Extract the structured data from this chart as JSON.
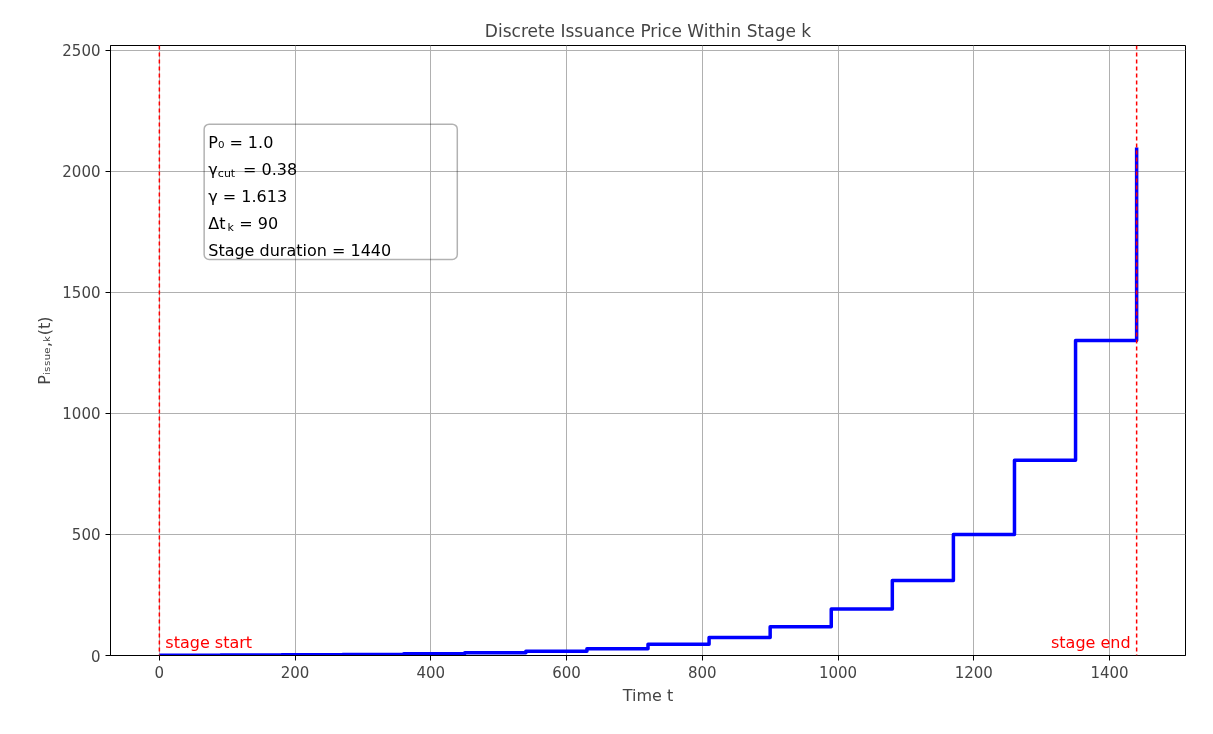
{
  "chart_data": {
    "type": "step",
    "title": "Discrete Issuance Price Within Stage k",
    "xlabel": "Time t",
    "ylabel": "Pᵢₛₛᵤₑ,ₖ(t)",
    "x": [
      0,
      90,
      180,
      270,
      360,
      450,
      540,
      630,
      720,
      810,
      900,
      990,
      1080,
      1170,
      1260,
      1350,
      1440
    ],
    "series": [
      {
        "color": "#0000ff",
        "values": [
          1,
          2,
          3,
          4,
          7,
          11,
          18,
          28,
          46,
          74,
          119,
          192,
          310,
          500,
          807,
          1301,
          2099
        ]
      }
    ],
    "xlim": [
      -72,
      1512
    ],
    "ylim": [
      0,
      2520
    ],
    "xticks": [
      0,
      200,
      400,
      600,
      800,
      1000,
      1200,
      1400
    ],
    "yticks": [
      0,
      500,
      1000,
      1500,
      2000,
      2500
    ],
    "grid": true,
    "line_style": "solid",
    "ref_lines": [
      {
        "axis": "x",
        "value": 0,
        "label": "stage start",
        "color": "#ff0000",
        "line_style": "dashed"
      },
      {
        "axis": "x",
        "value": 1440,
        "label": "stage end",
        "color": "#ff0000",
        "line_style": "dashed"
      }
    ],
    "annotations": [
      "P₀ = 1.0\nγ$_{cut}$ = 0.38\nγ = 1.613\nΔt$_{k}$ = 90\nStage duration = 1440"
    ]
  }
}
